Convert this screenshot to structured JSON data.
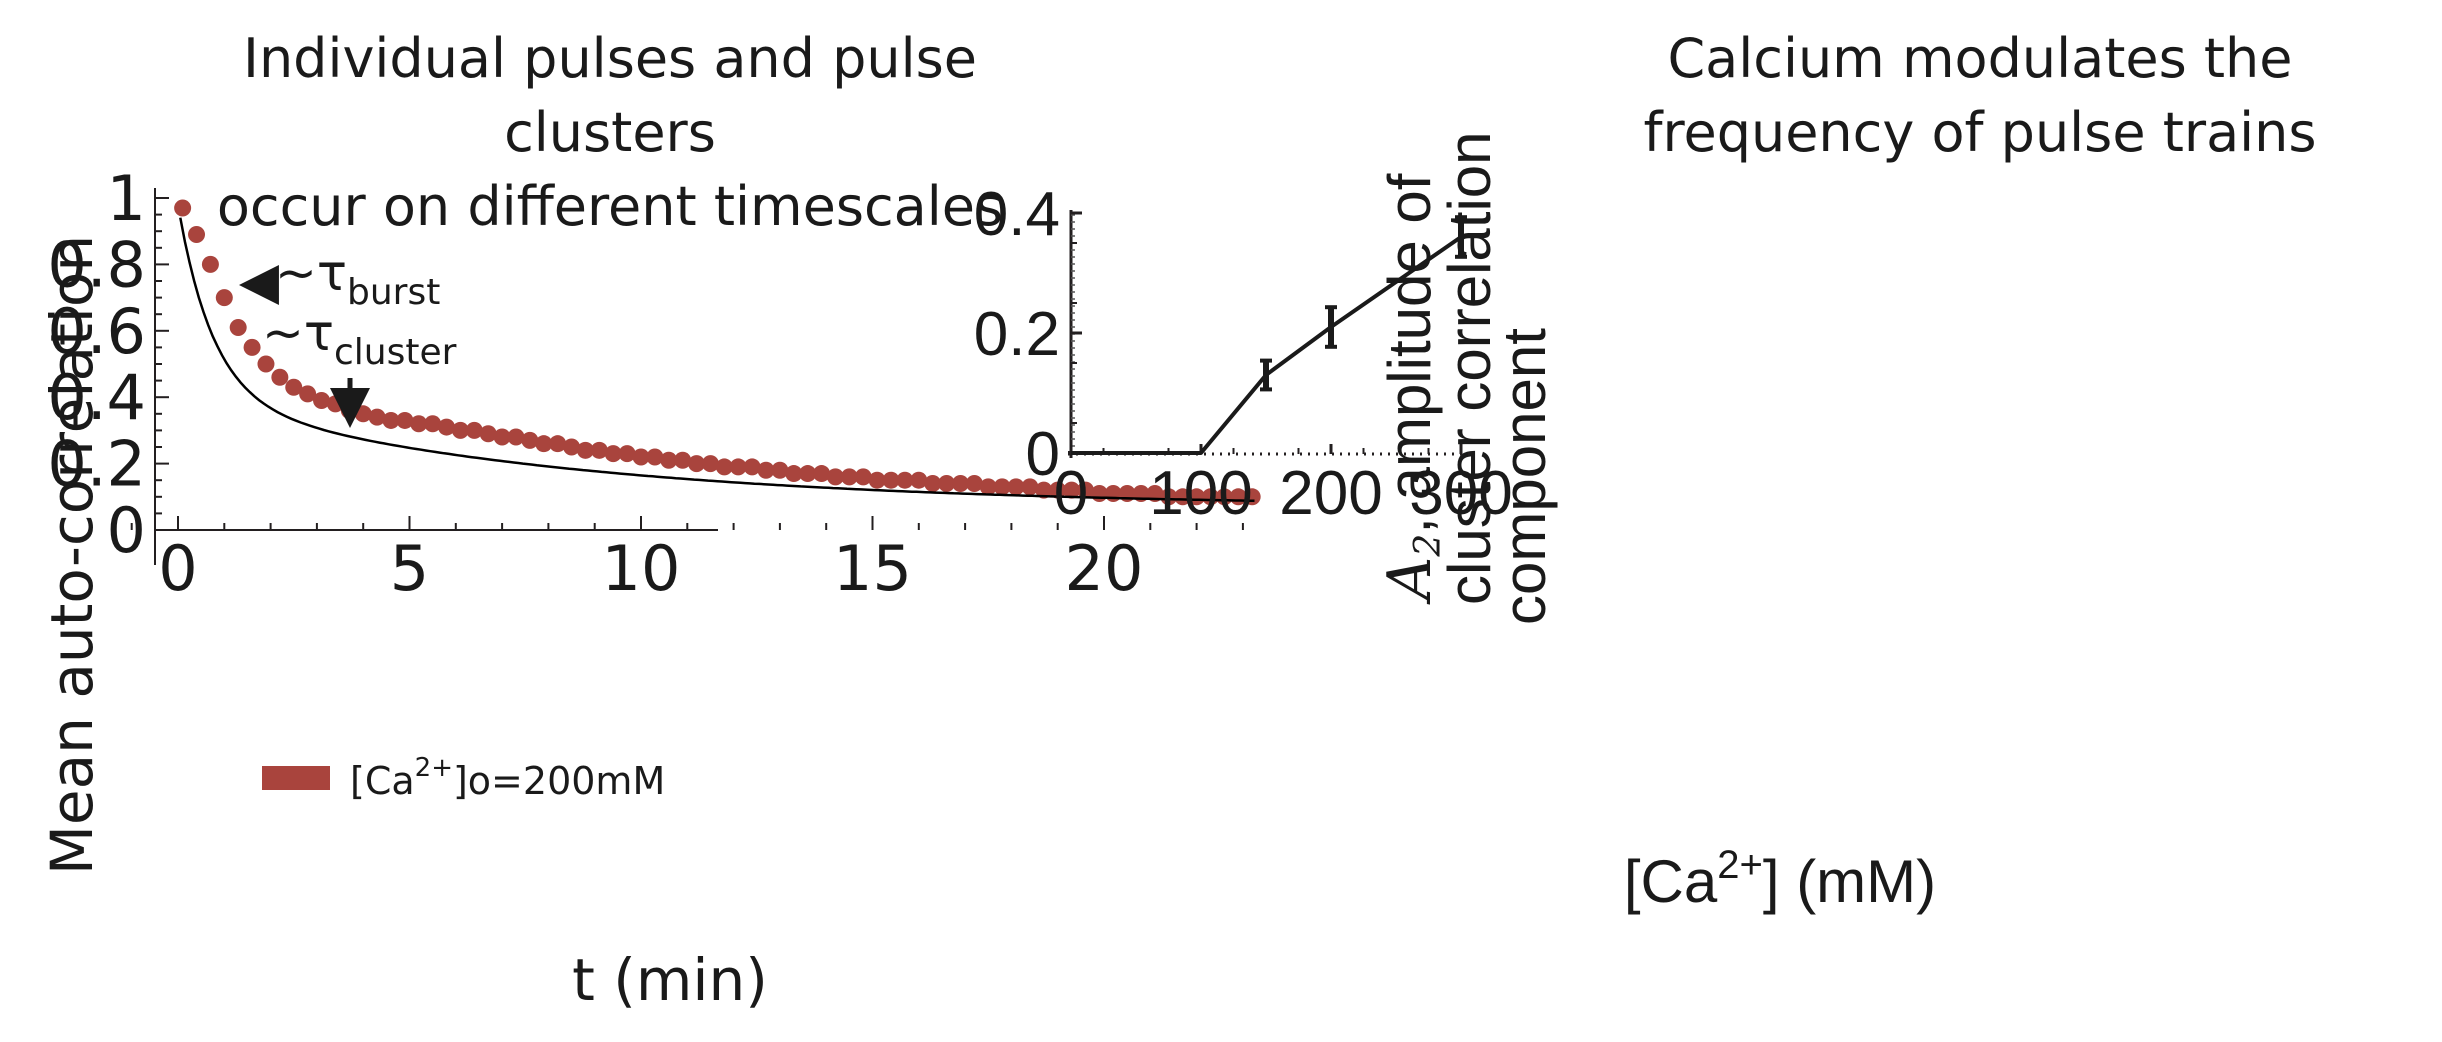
{
  "titles": {
    "left_line1": "Individual pulses and pulse clusters",
    "left_line2": "occur on different timescales",
    "right_line1": "Calcium modulates the",
    "right_line2": "frequency of pulse trains"
  },
  "colors": {
    "series": "#a9443d",
    "line": "#000000",
    "axis": "#231f20"
  },
  "chart_data": [
    {
      "type": "scatter",
      "title": "Individual pulses and pulse clusters occur on different timescales",
      "xlabel": "t (min)",
      "ylabel": "Mean auto-correlation",
      "xlim": [
        -1,
        23.5
      ],
      "ylim": [
        0,
        1
      ],
      "xticks": [
        0,
        5,
        10,
        15,
        20
      ],
      "xtick_labels": [
        "0",
        "5",
        "10",
        "15",
        "20"
      ],
      "yticks": [
        0,
        0.2,
        0.4,
        0.6,
        0.8,
        1
      ],
      "ytick_labels": [
        "0",
        "0.2",
        "0.4",
        "0.6",
        "0.8",
        "1"
      ],
      "legend": {
        "label_prefix": "[Ca",
        "label_sup": "2+",
        "label_suffix": "]o=200mM",
        "position": "bottom-left"
      },
      "annotations": [
        {
          "prefix": "~τ",
          "subscript": "burst",
          "t": 1.1,
          "y": 0.71
        },
        {
          "prefix": "~τ",
          "subscript": "cluster",
          "t": 7.4,
          "y": 0.29
        }
      ],
      "fit": {
        "a1": 0.58,
        "tau1": 0.75,
        "a2": 0.33,
        "tau2": 8.0,
        "c": 0.07
      },
      "x": [
        0.1,
        0.4,
        0.7,
        1.0,
        1.3,
        1.6,
        1.9,
        2.2,
        2.5,
        2.8,
        3.1,
        3.4,
        3.7,
        4.0,
        4.3,
        4.6,
        4.9,
        5.2,
        5.5,
        5.8,
        6.1,
        6.4,
        6.7,
        7.0,
        7.3,
        7.6,
        7.9,
        8.2,
        8.5,
        8.8,
        9.1,
        9.4,
        9.7,
        10.0,
        10.3,
        10.6,
        10.9,
        11.2,
        11.5,
        11.8,
        12.1,
        12.4,
        12.7,
        13.0,
        13.3,
        13.6,
        13.9,
        14.2,
        14.5,
        14.8,
        15.1,
        15.4,
        15.7,
        16.0,
        16.3,
        16.6,
        16.9,
        17.2,
        17.5,
        17.8,
        18.1,
        18.4,
        18.7,
        19.0,
        19.3,
        19.6,
        19.9,
        20.2,
        20.5,
        20.8,
        21.1,
        21.4,
        21.7,
        22.0,
        22.3,
        22.6,
        22.9,
        23.2
      ],
      "values": [
        0.97,
        0.89,
        0.8,
        0.7,
        0.61,
        0.55,
        0.5,
        0.46,
        0.43,
        0.41,
        0.39,
        0.38,
        0.36,
        0.35,
        0.34,
        0.33,
        0.33,
        0.32,
        0.32,
        0.31,
        0.3,
        0.3,
        0.29,
        0.28,
        0.28,
        0.27,
        0.26,
        0.26,
        0.25,
        0.24,
        0.24,
        0.23,
        0.23,
        0.22,
        0.22,
        0.21,
        0.21,
        0.2,
        0.2,
        0.19,
        0.19,
        0.19,
        0.18,
        0.18,
        0.17,
        0.17,
        0.17,
        0.16,
        0.16,
        0.16,
        0.15,
        0.15,
        0.15,
        0.15,
        0.14,
        0.14,
        0.14,
        0.14,
        0.13,
        0.13,
        0.13,
        0.13,
        0.12,
        0.12,
        0.12,
        0.12,
        0.11,
        0.11,
        0.11,
        0.11,
        0.11,
        0.1,
        0.1,
        0.1,
        0.1,
        0.1,
        0.1,
        0.1
      ]
    },
    {
      "type": "line",
      "title": "Calcium modulates the frequency of pulse trains",
      "xlabel_prefix": "[Ca",
      "xlabel_sup": "2+",
      "xlabel_suffix": "] (mM)",
      "ylabel_symbol": "A",
      "ylabel_sub": "2",
      "ylabel_line1_rest": ", amplitude of",
      "ylabel_line2": "cluster correlation",
      "ylabel_line3": "component",
      "xlim": [
        0,
        300
      ],
      "ylim": [
        0,
        0.4
      ],
      "xticks": [
        0,
        100,
        200,
        300
      ],
      "xtick_labels": [
        "0",
        "100",
        "200",
        "300"
      ],
      "yticks": [
        0,
        0.2,
        0.4
      ],
      "ytick_labels": [
        "0",
        "0.2",
        "0.4"
      ],
      "x": [
        0,
        100,
        150,
        200,
        300
      ],
      "values": [
        0,
        0,
        0.13,
        0.21,
        0.36
      ],
      "errors": [
        null,
        null,
        0.024,
        0.033,
        0.033
      ]
    }
  ]
}
